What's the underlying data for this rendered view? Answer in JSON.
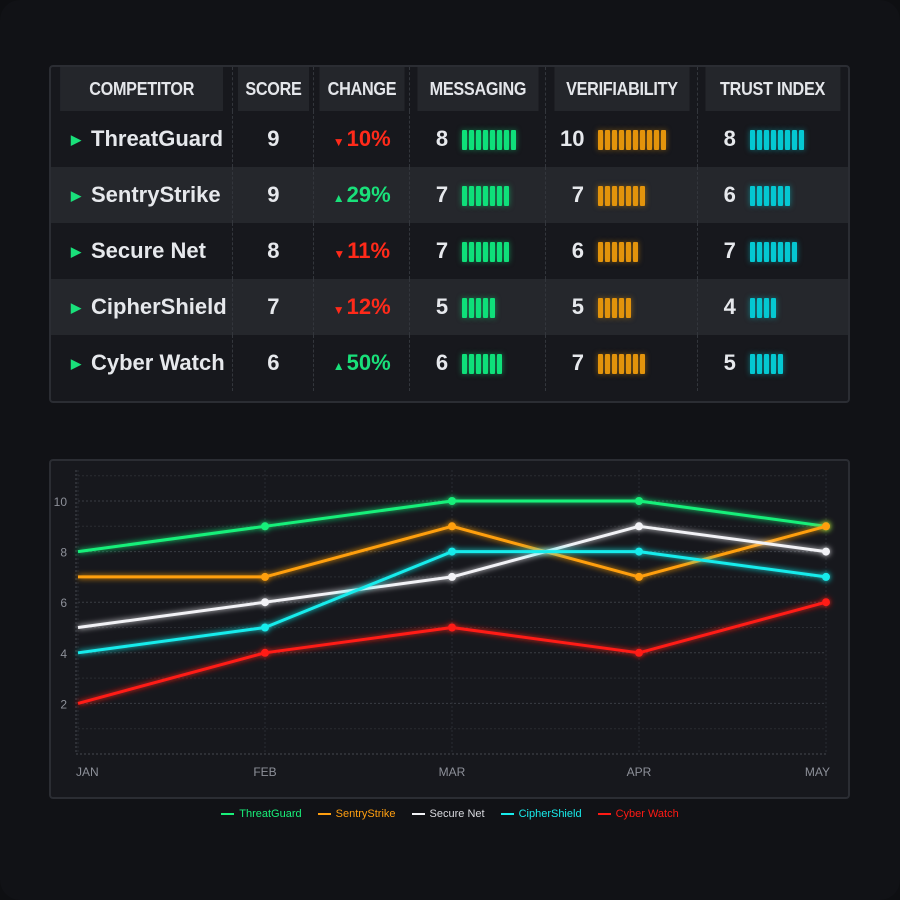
{
  "table": {
    "headers": [
      "COMPETITOR",
      "SCORE",
      "CHANGE",
      "MESSAGING",
      "VERIFIABILITY",
      "TRUST INDEX"
    ],
    "rows": [
      {
        "name": "ThreatGuard",
        "score": "9",
        "change": "10%",
        "dir": "down",
        "messaging": 8,
        "verifiability": 10,
        "trust": 8
      },
      {
        "name": "SentryStrike",
        "score": "9",
        "change": "29%",
        "dir": "up",
        "messaging": 7,
        "verifiability": 7,
        "trust": 6
      },
      {
        "name": "Secure Net",
        "score": "8",
        "change": "11%",
        "dir": "down",
        "messaging": 7,
        "verifiability": 6,
        "trust": 7
      },
      {
        "name": "CipherShield",
        "score": "7",
        "change": "12%",
        "dir": "down",
        "messaging": 5,
        "verifiability": 5,
        "trust": 4
      },
      {
        "name": "Cyber Watch",
        "score": "6",
        "change": "50%",
        "dir": "up",
        "messaging": 6,
        "verifiability": 7,
        "trust": 5
      }
    ],
    "colors": {
      "messaging": "#0fe07a",
      "verifiability": "#e3940c",
      "trust": "#05c8d2",
      "up": "#19e07a",
      "down": "#ff2a1a"
    }
  },
  "chart_data": {
    "type": "line",
    "categories": [
      "JAN",
      "FEB",
      "MAR",
      "APR",
      "MAY"
    ],
    "ylim": [
      0,
      11
    ],
    "yticks": [
      2,
      4,
      6,
      8,
      10
    ],
    "grid": true,
    "legend": "bottom",
    "series": [
      {
        "name": "ThreatGuard",
        "color": "#19f07a",
        "values": [
          8,
          9,
          10,
          10,
          9
        ]
      },
      {
        "name": "SentryStrike",
        "color": "#ff9f10",
        "values": [
          7,
          7,
          9,
          7,
          9
        ]
      },
      {
        "name": "Secure Net",
        "color": "#f2f2f6",
        "values": [
          5,
          6,
          7,
          9,
          8
        ]
      },
      {
        "name": "CipherShield",
        "color": "#18ecec",
        "values": [
          4,
          5,
          8,
          8,
          7
        ]
      },
      {
        "name": "Cyber Watch",
        "color": "#ff1a14",
        "values": [
          2,
          4,
          5,
          4,
          6
        ]
      }
    ]
  }
}
